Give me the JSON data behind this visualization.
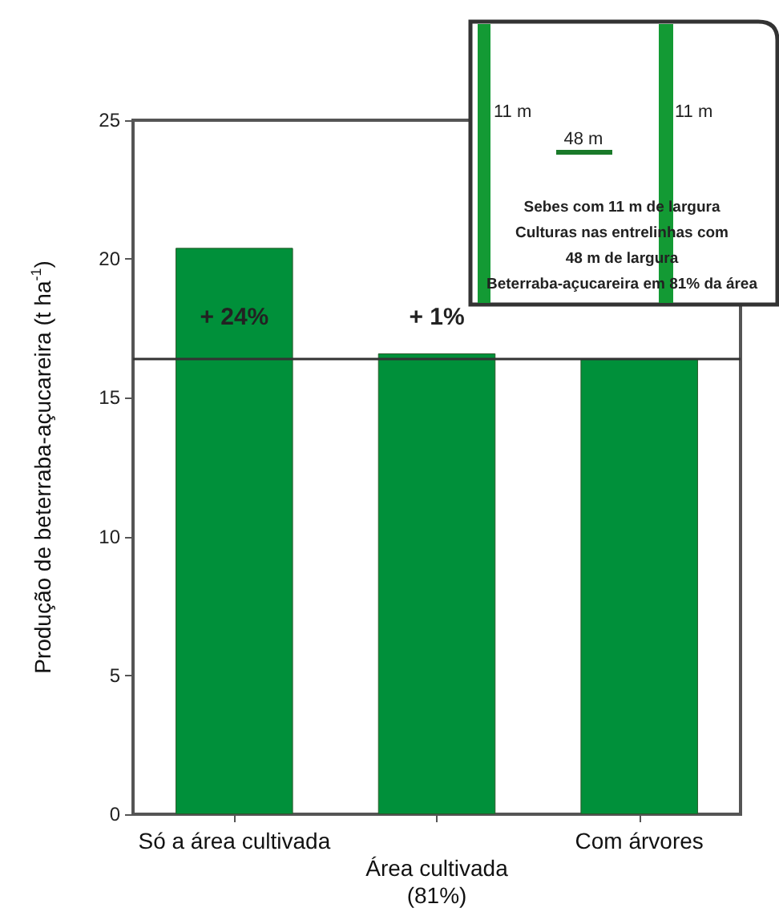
{
  "chart_data": {
    "type": "bar",
    "ylabel": "Produção de beterraba-açucareira (t ha$^{-1}$)",
    "categories": [
      "Só a área cultivada",
      "Área cultivada\n(81%)",
      "Com árvores"
    ],
    "values": [
      20.4,
      16.6,
      16.4
    ],
    "color": "#00903a",
    "ylim": [
      0,
      25
    ],
    "yticks": [
      0,
      5,
      10,
      15,
      20,
      25
    ],
    "grid": false,
    "ref_lines": [
      {
        "axis": "y",
        "value": 16.4,
        "color": "#333333"
      }
    ],
    "annotations": [
      "+ 24%",
      "+ 1%",
      "11 m",
      "11 m",
      "48 m",
      "Sebes com 11 m de largura",
      "Culturas nas entrelinhas com\n48 m de largura",
      "Beterraba-açucareira em 81% da área"
    ]
  }
}
